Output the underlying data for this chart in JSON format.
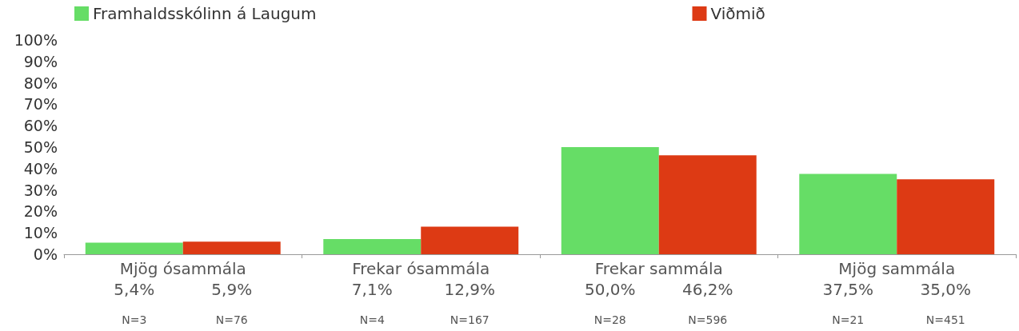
{
  "chart_data": {
    "type": "bar",
    "categories": [
      "Mjög ósammála",
      "Frekar ósammála",
      "Frekar sammála",
      "Mjög sammála"
    ],
    "series": [
      {
        "name": "Framhaldsskólinn á Laugum",
        "color": "#66dd66",
        "values": [
          5.4,
          7.1,
          50.0,
          37.5
        ],
        "value_labels": [
          "5,4%",
          "7,1%",
          "50,0%",
          "37,5%"
        ]
      },
      {
        "name": "Viðmið",
        "color": "#dd3a14",
        "values": [
          5.9,
          12.9,
          46.2,
          35.0
        ],
        "value_labels": [
          "5,9%",
          "12,9%",
          "46,2%",
          "35,0%"
        ]
      }
    ],
    "ylim": [
      0,
      100
    ],
    "yticks": [
      {
        "value": 0,
        "label": "0%"
      },
      {
        "value": 10,
        "label": "10%"
      },
      {
        "value": 20,
        "label": "20%"
      },
      {
        "value": 30,
        "label": "30%"
      },
      {
        "value": 40,
        "label": "40%"
      },
      {
        "value": 50,
        "label": "50%"
      },
      {
        "value": 60,
        "label": "60%"
      },
      {
        "value": 70,
        "label": "70%"
      },
      {
        "value": 80,
        "label": "80%"
      },
      {
        "value": 90,
        "label": "90%"
      },
      {
        "value": 100,
        "label": "100%"
      }
    ],
    "annotations": [
      "N=3",
      "N=76",
      "N=4",
      "N=167",
      "N=28",
      "N=596",
      "N=21",
      "N=451"
    ],
    "legend": "top",
    "grid": false
  }
}
